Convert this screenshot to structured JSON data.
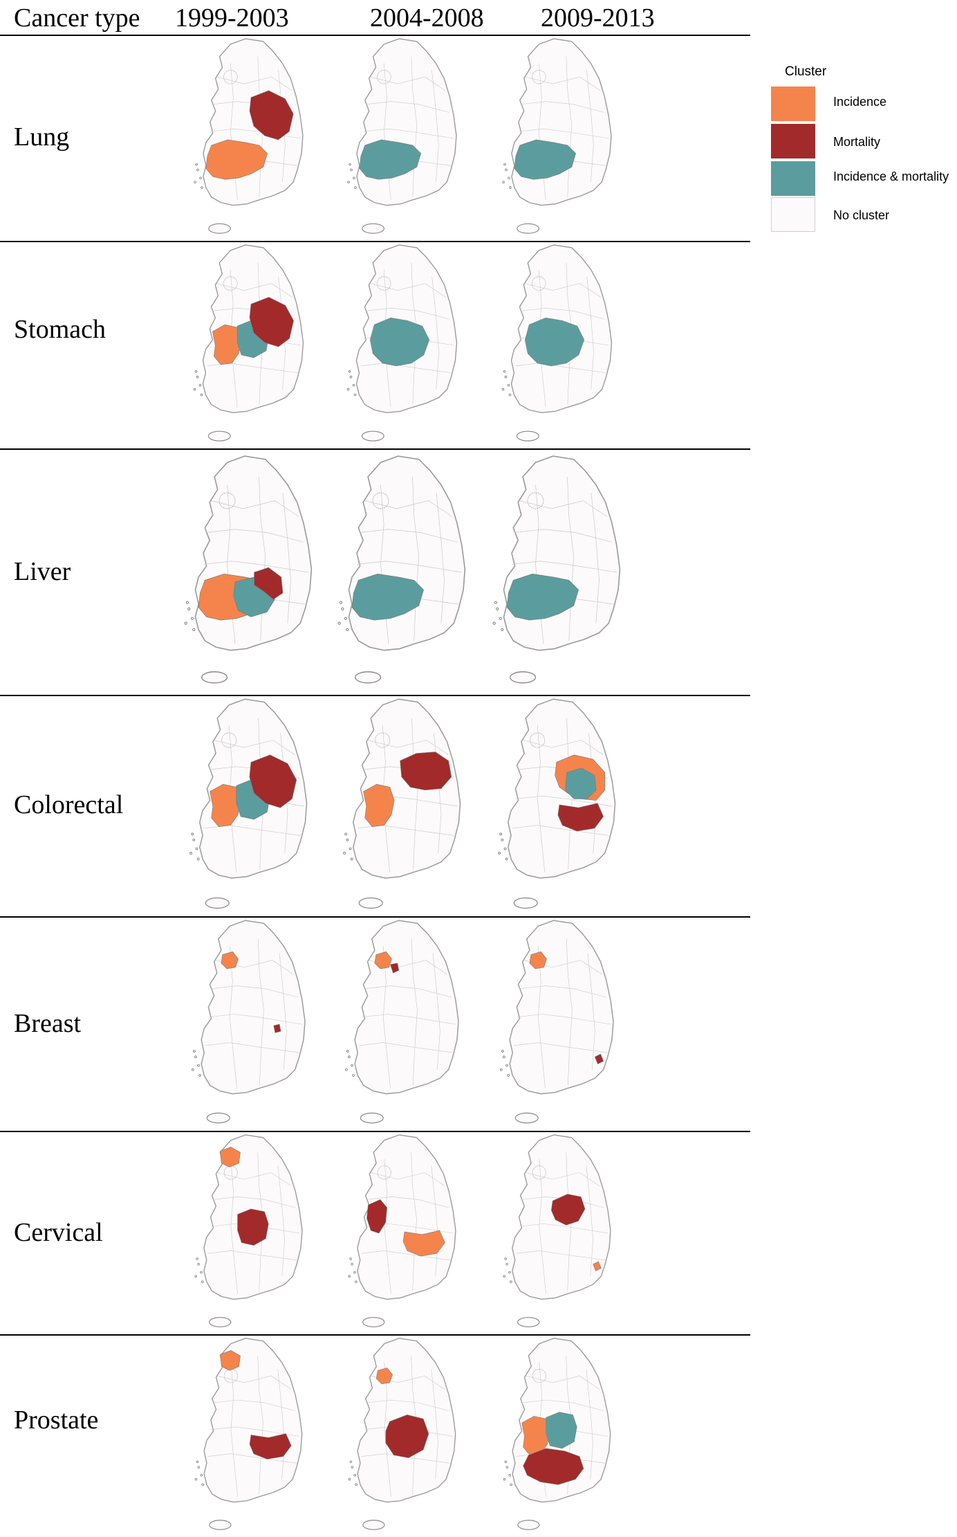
{
  "header": {
    "cancer_type": "Cancer type",
    "periods": [
      "1999-2003",
      "2004-2008",
      "2009-2013"
    ]
  },
  "colors": {
    "incidence": "#f5844c",
    "mortality": "#a32a2a",
    "both": "#5b9d9e",
    "none": "#fcfafa",
    "outline": "#9a9a9a"
  },
  "legend": {
    "title": "Cluster",
    "items": [
      {
        "key": "incidence",
        "label": "Incidence"
      },
      {
        "key": "mortality",
        "label": "Mortality"
      },
      {
        "key": "both",
        "label": "Incidence & mortality"
      },
      {
        "key": "none",
        "label": "No cluster"
      }
    ]
  },
  "rows": [
    {
      "name": "Lung",
      "maps": [
        [
          {
            "t": "mortality",
            "region": "central-east"
          },
          {
            "t": "incidence",
            "region": "southwest"
          }
        ],
        [
          {
            "t": "both",
            "region": "southwest"
          }
        ],
        [
          {
            "t": "both",
            "region": "southwest"
          }
        ]
      ]
    },
    {
      "name": "Stomach",
      "maps": [
        [
          {
            "t": "incidence",
            "region": "west-central"
          },
          {
            "t": "both",
            "region": "central"
          },
          {
            "t": "mortality",
            "region": "central-east"
          }
        ],
        [
          {
            "t": "both",
            "region": "central-southwest"
          }
        ],
        [
          {
            "t": "both",
            "region": "central-southwest"
          }
        ]
      ]
    },
    {
      "name": "Liver",
      "maps": [
        [
          {
            "t": "incidence",
            "region": "southwest"
          },
          {
            "t": "both",
            "region": "south-central"
          },
          {
            "t": "mortality",
            "region": "south-central-north"
          }
        ],
        [
          {
            "t": "both",
            "region": "southwest"
          }
        ],
        [
          {
            "t": "both",
            "region": "southwest"
          }
        ]
      ]
    },
    {
      "name": "Colorectal",
      "maps": [
        [
          {
            "t": "incidence",
            "region": "west-central"
          },
          {
            "t": "both",
            "region": "central"
          },
          {
            "t": "mortality",
            "region": "central-east"
          }
        ],
        [
          {
            "t": "incidence",
            "region": "west-central"
          },
          {
            "t": "mortality",
            "region": "north-central"
          }
        ],
        [
          {
            "t": "incidence",
            "region": "east-ring"
          },
          {
            "t": "both",
            "region": "east-central"
          },
          {
            "t": "mortality",
            "region": "southeast"
          }
        ]
      ]
    },
    {
      "name": "Breast",
      "maps": [
        [
          {
            "t": "incidence",
            "region": "seoul"
          },
          {
            "t": "mortality",
            "region": "east-point"
          }
        ],
        [
          {
            "t": "incidence",
            "region": "seoul"
          },
          {
            "t": "mortality",
            "region": "seoul-east"
          }
        ],
        [
          {
            "t": "incidence",
            "region": "seoul"
          },
          {
            "t": "mortality",
            "region": "southeast-point"
          }
        ]
      ]
    },
    {
      "name": "Cervical",
      "maps": [
        [
          {
            "t": "incidence",
            "region": "northwest"
          },
          {
            "t": "mortality",
            "region": "central"
          }
        ],
        [
          {
            "t": "mortality",
            "region": "west"
          },
          {
            "t": "incidence",
            "region": "southeast"
          }
        ],
        [
          {
            "t": "mortality",
            "region": "central-north"
          },
          {
            "t": "incidence",
            "region": "southeast-point"
          }
        ]
      ]
    },
    {
      "name": "Prostate",
      "maps": [
        [
          {
            "t": "incidence",
            "region": "northwest"
          },
          {
            "t": "mortality",
            "region": "southeast"
          }
        ],
        [
          {
            "t": "incidence",
            "region": "seoul"
          },
          {
            "t": "mortality",
            "region": "central-south"
          }
        ],
        [
          {
            "t": "incidence",
            "region": "west-central"
          },
          {
            "t": "both",
            "region": "central"
          },
          {
            "t": "mortality",
            "region": "south"
          }
        ]
      ]
    }
  ]
}
